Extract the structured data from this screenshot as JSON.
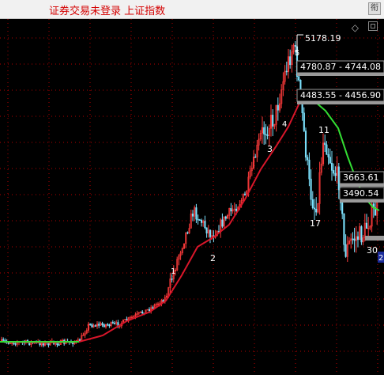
{
  "window": {
    "title": "证券交易未登录  上证指数",
    "corner_icon": "grid-icon"
  },
  "chart_data": {
    "type": "candlestick",
    "title": "",
    "moving_average": {
      "color_rising": "#d8162a",
      "color_falling": "#33dd33"
    },
    "price_labels": {
      "peak": "5178.19",
      "box1": "4780.87 - 4744.08",
      "box2": "4483.55 - 4456.90",
      "box3": "3663.61",
      "box4": "3490.54"
    },
    "wave_labels": [
      "1",
      "2",
      "3",
      "4",
      "5",
      "11",
      "17",
      "30",
      "2"
    ],
    "colors": {
      "up": "#ff3b3b",
      "down": "#7de3ff",
      "grid": "#b40000",
      "background": "#000000"
    }
  }
}
